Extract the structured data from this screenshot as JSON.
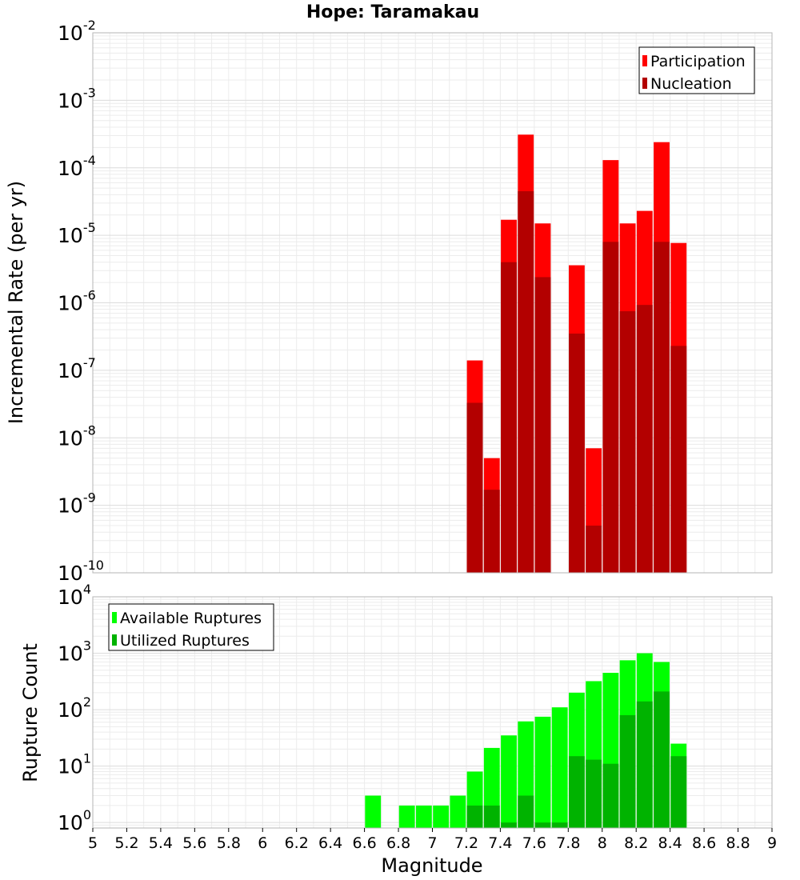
{
  "chart_data": [
    {
      "type": "bar",
      "title": "Hope: Taramakau",
      "ylabel": "Incremental Rate (per yr)",
      "yscale": "log",
      "ylim": [
        1e-10,
        0.01
      ],
      "xlim": [
        5,
        9
      ],
      "legend_placement": "top-right",
      "grid": true,
      "y_ticks": [
        {
          "base": "10",
          "exp": "-10"
        },
        {
          "base": "10",
          "exp": "-9"
        },
        {
          "base": "10",
          "exp": "-8"
        },
        {
          "base": "10",
          "exp": "-7"
        },
        {
          "base": "10",
          "exp": "-6"
        },
        {
          "base": "10",
          "exp": "-5"
        },
        {
          "base": "10",
          "exp": "-4"
        },
        {
          "base": "10",
          "exp": "-3"
        },
        {
          "base": "10",
          "exp": "-2"
        }
      ],
      "x": [
        7.25,
        7.35,
        7.45,
        7.55,
        7.65,
        7.85,
        7.95,
        8.05,
        8.15,
        8.25,
        8.35,
        8.45
      ],
      "series": [
        {
          "name": "Participation",
          "color": "#ff0000",
          "values": [
            1.4e-07,
            5e-09,
            1.7e-05,
            0.00031,
            1.5e-05,
            3.6e-06,
            7e-09,
            0.00013,
            1.5e-05,
            2.3e-05,
            0.00024,
            7.7e-06
          ]
        },
        {
          "name": "Nucleation",
          "color": "#b30000",
          "values": [
            3.3e-08,
            1.7e-09,
            4e-06,
            4.5e-05,
            2.4e-06,
            3.5e-07,
            5e-10,
            8e-06,
            7.5e-07,
            9.3e-07,
            8e-06,
            2.3e-07
          ]
        }
      ]
    },
    {
      "type": "bar",
      "xlabel": "Magnitude",
      "ylabel": "Rupture Count",
      "yscale": "log",
      "ylim": [
        0.8,
        10000.0
      ],
      "xlim": [
        5,
        9
      ],
      "legend_placement": "top-left",
      "grid": true,
      "y_ticks": [
        {
          "base": "10",
          "exp": "0"
        },
        {
          "base": "10",
          "exp": "1"
        },
        {
          "base": "10",
          "exp": "2"
        },
        {
          "base": "10",
          "exp": "3"
        },
        {
          "base": "10",
          "exp": "4"
        }
      ],
      "x_ticks": [
        "5",
        "5.2",
        "5.4",
        "5.6",
        "5.8",
        "6",
        "6.2",
        "6.4",
        "6.6",
        "6.8",
        "7",
        "7.2",
        "7.4",
        "7.6",
        "7.8",
        "8",
        "8.2",
        "8.4",
        "8.6",
        "8.8",
        "9"
      ],
      "x": [
        6.65,
        6.85,
        6.95,
        7.05,
        7.15,
        7.25,
        7.35,
        7.45,
        7.55,
        7.65,
        7.75,
        7.85,
        7.95,
        8.05,
        8.15,
        8.25,
        8.35,
        8.45
      ],
      "series": [
        {
          "name": "Available Ruptures",
          "color": "#00ff00",
          "values": [
            3,
            2,
            2,
            2,
            3,
            8,
            21,
            35,
            62,
            75,
            110,
            200,
            320,
            450,
            750,
            1000,
            700,
            25
          ]
        },
        {
          "name": "Utilized Ruptures",
          "color": "#00b300",
          "values": [
            0,
            0,
            0,
            0,
            0,
            2,
            2,
            1,
            3,
            1,
            1,
            15,
            13,
            11,
            80,
            140,
            210,
            15
          ]
        }
      ]
    }
  ]
}
